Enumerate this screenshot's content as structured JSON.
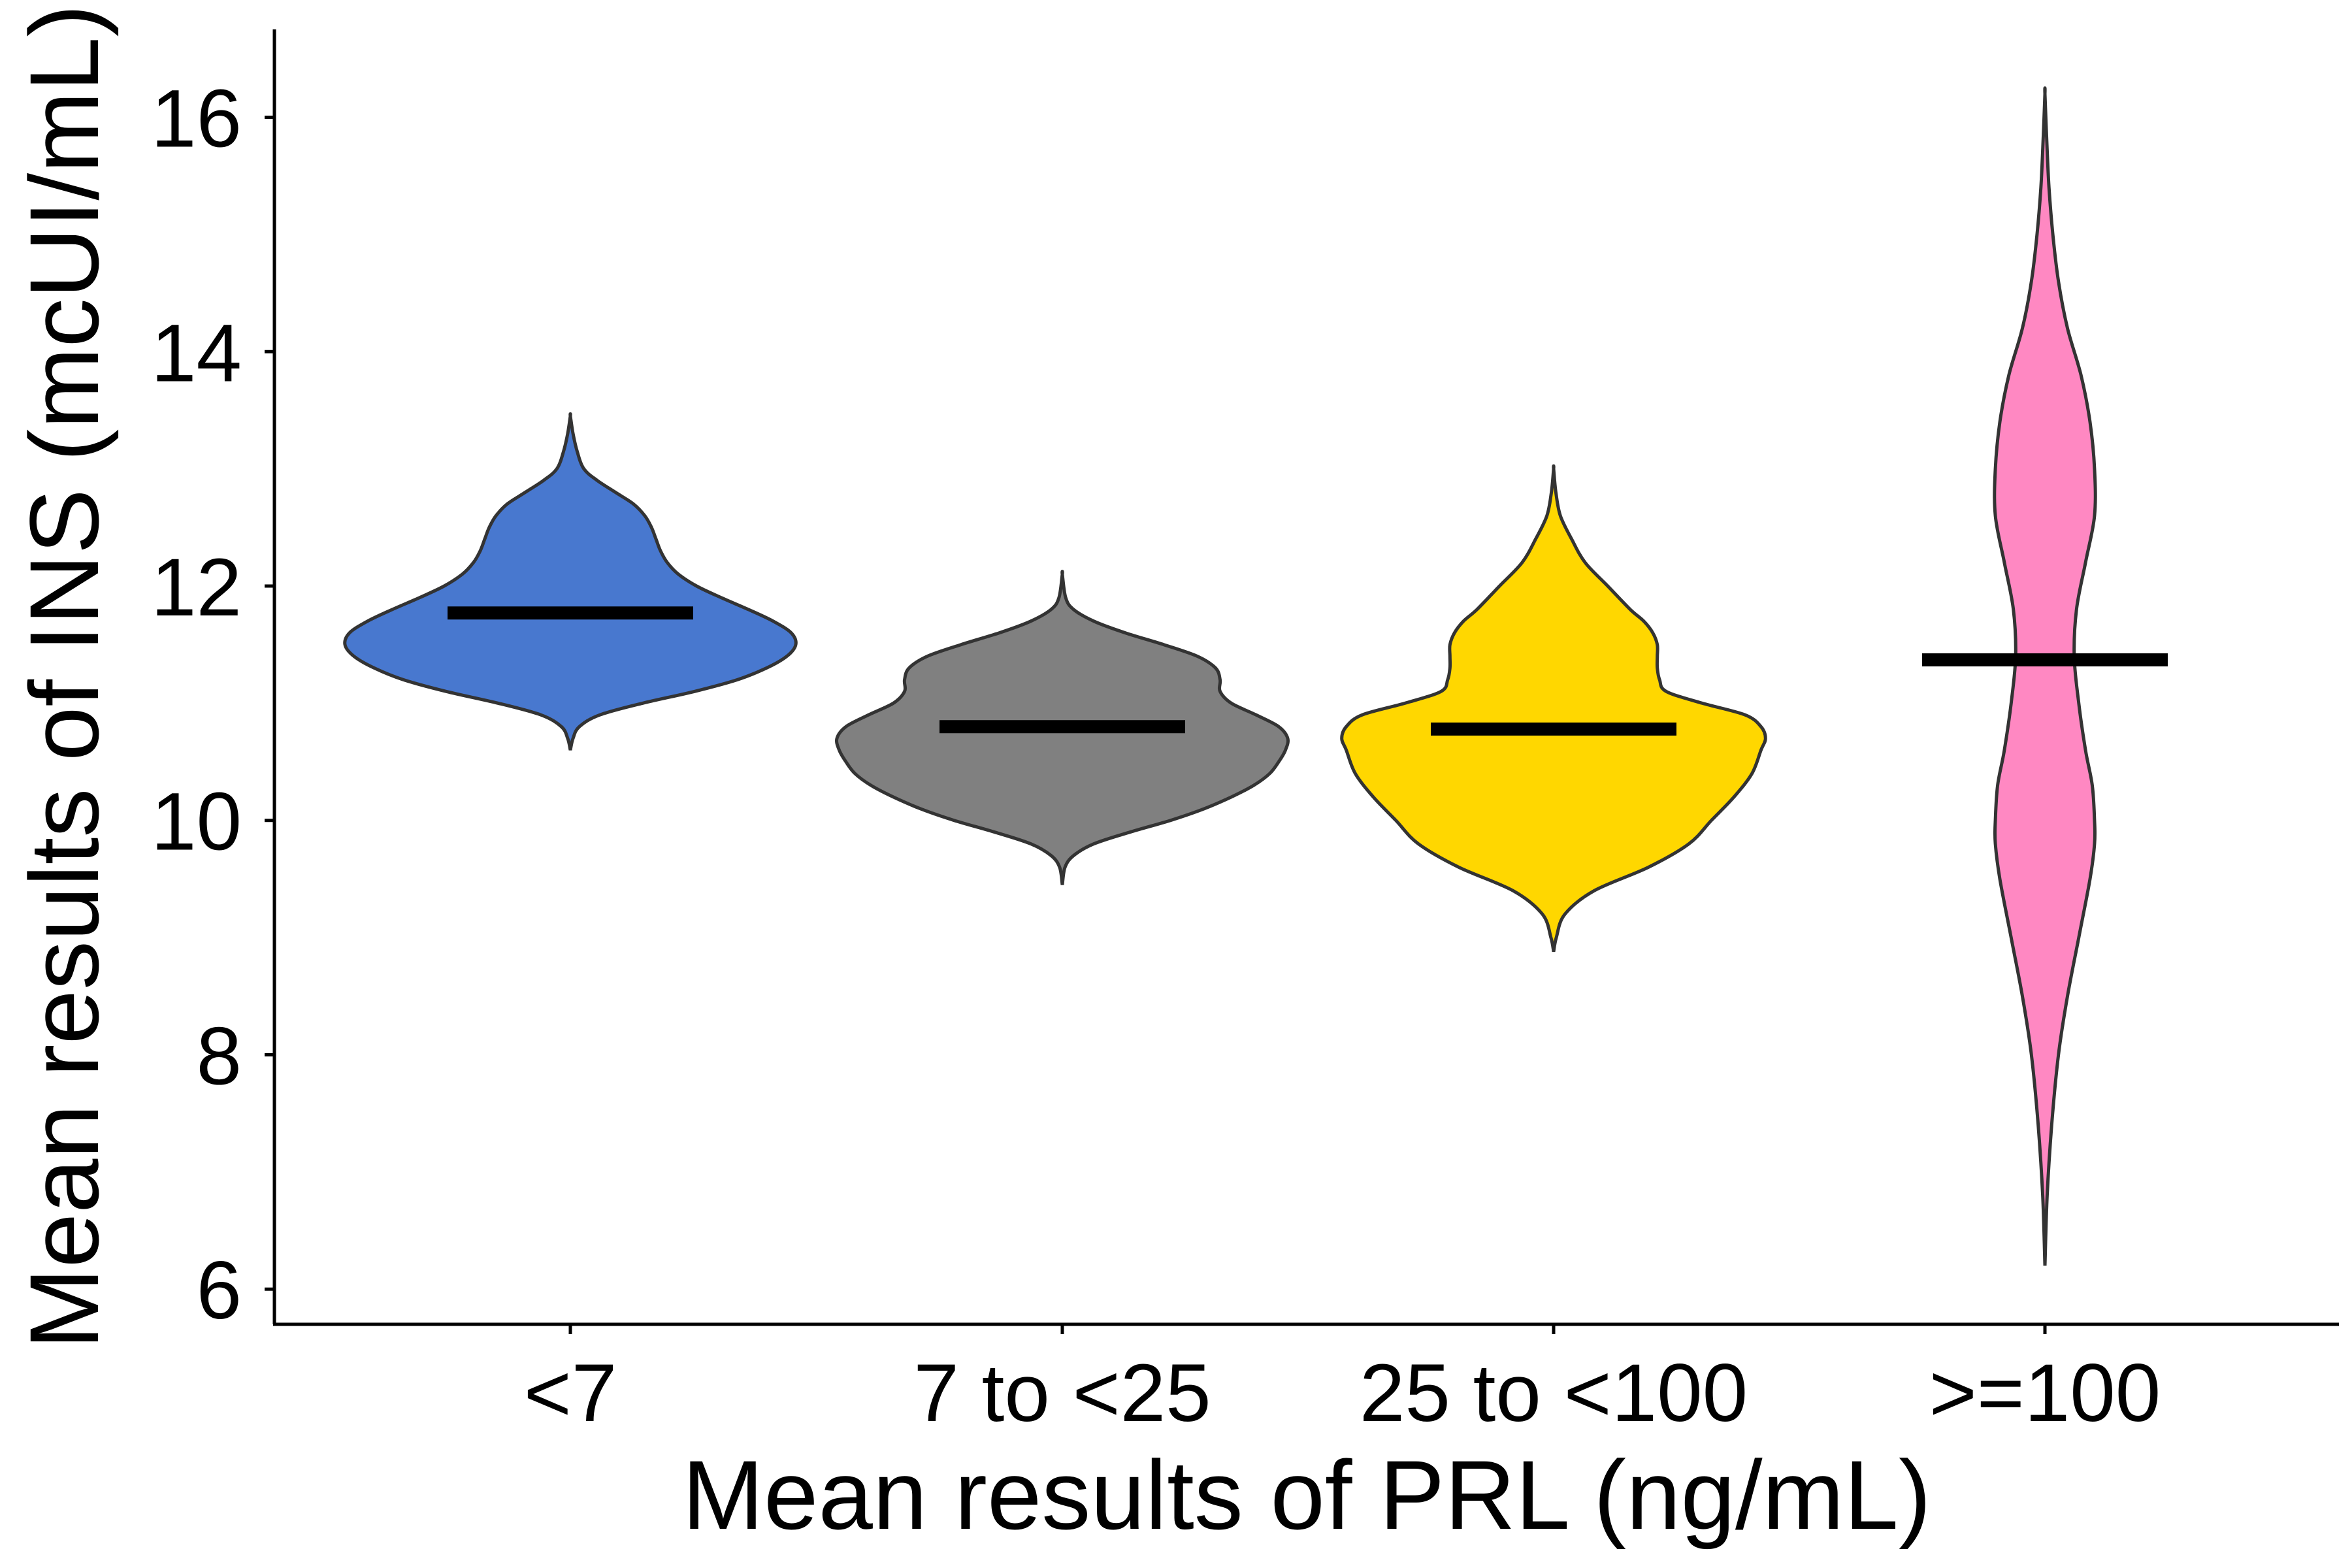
{
  "chart_data": {
    "type": "violin",
    "title": "",
    "xlabel": "Mean results of PRL (ng/mL)",
    "ylabel": "Mean results of INS (mcUI/mL)",
    "ylim": [
      5.7,
      16.75
    ],
    "yticks": [
      "6",
      "8",
      "10",
      "12",
      "14",
      "16"
    ],
    "categories": [
      "<7",
      "7 to <25",
      "25 to <100",
      ">=100"
    ],
    "grid": false,
    "legend": "none",
    "series": [
      {
        "category": "<7",
        "color": "#4878CF",
        "mean": 11.77,
        "min": 10.6,
        "max": 13.45,
        "density": [
          [
            10.6,
            0.0
          ],
          [
            10.7,
            0.012
          ],
          [
            10.8,
            0.04
          ],
          [
            10.9,
            0.13
          ],
          [
            11.0,
            0.32
          ],
          [
            11.1,
            0.55
          ],
          [
            11.2,
            0.74
          ],
          [
            11.3,
            0.87
          ],
          [
            11.4,
            0.96
          ],
          [
            11.5,
            1.0
          ],
          [
            11.6,
            0.98
          ],
          [
            11.7,
            0.9
          ],
          [
            11.8,
            0.79
          ],
          [
            11.9,
            0.67
          ],
          [
            12.0,
            0.56
          ],
          [
            12.1,
            0.48
          ],
          [
            12.2,
            0.43
          ],
          [
            12.3,
            0.4
          ],
          [
            12.4,
            0.38
          ],
          [
            12.5,
            0.36
          ],
          [
            12.6,
            0.33
          ],
          [
            12.7,
            0.28
          ],
          [
            12.8,
            0.2
          ],
          [
            12.9,
            0.12
          ],
          [
            13.0,
            0.06
          ],
          [
            13.15,
            0.03
          ],
          [
            13.3,
            0.012
          ],
          [
            13.45,
            0.0
          ]
        ]
      },
      {
        "category": "7 to <25",
        "color": "#808080",
        "mean": 10.8,
        "min": 9.45,
        "max": 12.1,
        "density": [
          [
            9.45,
            0.0
          ],
          [
            9.6,
            0.012
          ],
          [
            9.7,
            0.05
          ],
          [
            9.8,
            0.14
          ],
          [
            9.9,
            0.3
          ],
          [
            10.0,
            0.48
          ],
          [
            10.1,
            0.63
          ],
          [
            10.2,
            0.75
          ],
          [
            10.3,
            0.85
          ],
          [
            10.4,
            0.92
          ],
          [
            10.5,
            0.96
          ],
          [
            10.6,
            0.99
          ],
          [
            10.7,
            1.0
          ],
          [
            10.8,
            0.96
          ],
          [
            10.9,
            0.86
          ],
          [
            11.0,
            0.75
          ],
          [
            11.1,
            0.7
          ],
          [
            11.2,
            0.7
          ],
          [
            11.3,
            0.68
          ],
          [
            11.4,
            0.6
          ],
          [
            11.5,
            0.45
          ],
          [
            11.6,
            0.28
          ],
          [
            11.7,
            0.14
          ],
          [
            11.8,
            0.05
          ],
          [
            11.9,
            0.015
          ],
          [
            12.1,
            0.0
          ]
        ]
      },
      {
        "category": "25 to <100",
        "color": "#FFD700",
        "mean": 10.78,
        "min": 8.88,
        "max": 13.0,
        "density": [
          [
            8.88,
            0.0
          ],
          [
            9.0,
            0.012
          ],
          [
            9.2,
            0.05
          ],
          [
            9.4,
            0.18
          ],
          [
            9.6,
            0.42
          ],
          [
            9.8,
            0.6
          ],
          [
            10.0,
            0.7
          ],
          [
            10.2,
            0.8
          ],
          [
            10.4,
            0.88
          ],
          [
            10.6,
            0.92
          ],
          [
            10.7,
            0.94
          ],
          [
            10.8,
            0.92
          ],
          [
            10.9,
            0.85
          ],
          [
            11.0,
            0.66
          ],
          [
            11.1,
            0.5
          ],
          [
            11.2,
            0.47
          ],
          [
            11.3,
            0.46
          ],
          [
            11.4,
            0.46
          ],
          [
            11.5,
            0.46
          ],
          [
            11.6,
            0.44
          ],
          [
            11.7,
            0.4
          ],
          [
            11.8,
            0.34
          ],
          [
            12.0,
            0.24
          ],
          [
            12.2,
            0.14
          ],
          [
            12.4,
            0.08
          ],
          [
            12.6,
            0.03
          ],
          [
            12.8,
            0.01
          ],
          [
            13.0,
            0.0
          ]
        ]
      },
      {
        "category": ">=100",
        "color": "#FF88C2",
        "mean": 11.37,
        "min": 6.2,
        "max": 16.2,
        "density": [
          [
            6.2,
            0.0
          ],
          [
            6.8,
            0.01
          ],
          [
            7.4,
            0.03
          ],
          [
            8.0,
            0.06
          ],
          [
            8.5,
            0.1
          ],
          [
            9.0,
            0.15
          ],
          [
            9.5,
            0.2
          ],
          [
            9.8,
            0.22
          ],
          [
            10.0,
            0.22
          ],
          [
            10.3,
            0.21
          ],
          [
            10.6,
            0.18
          ],
          [
            11.0,
            0.15
          ],
          [
            11.4,
            0.13
          ],
          [
            11.8,
            0.14
          ],
          [
            12.2,
            0.18
          ],
          [
            12.6,
            0.22
          ],
          [
            13.0,
            0.22
          ],
          [
            13.4,
            0.2
          ],
          [
            13.8,
            0.16
          ],
          [
            14.2,
            0.1
          ],
          [
            14.6,
            0.06
          ],
          [
            15.0,
            0.035
          ],
          [
            15.4,
            0.018
          ],
          [
            15.8,
            0.008
          ],
          [
            16.2,
            0.0
          ]
        ]
      }
    ]
  }
}
